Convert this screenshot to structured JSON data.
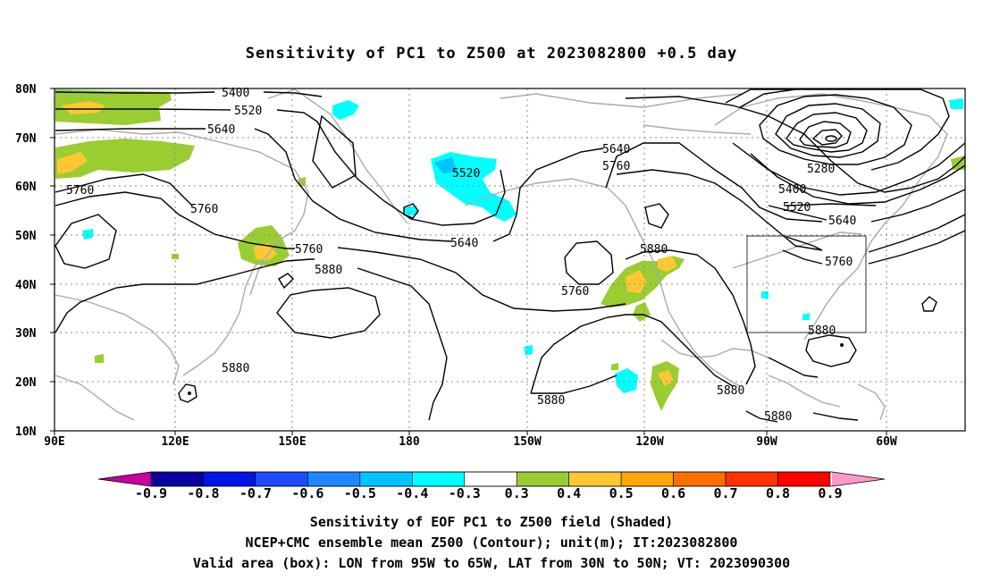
{
  "title": "Sensitivity of PC1 to Z500 at 2023082800 +0.5 day",
  "captions": [
    "Sensitivity of EOF PC1 to Z500 field (Shaded)",
    "NCEP+CMC ensemble mean Z500 (Contour); unit(m); IT:2023082800",
    "Valid area (box): LON from 95W to 65W, LAT from 30N to 50N; VT: 2023090300"
  ],
  "map": {
    "lon_range": [
      "90E",
      "50W"
    ],
    "lat_range": [
      "10N",
      "80N"
    ],
    "lat_ticks": [
      "80N",
      "70N",
      "60N",
      "50N",
      "40N",
      "30N",
      "20N",
      "10N"
    ],
    "lon_ticks": [
      "90E",
      "120E",
      "150E",
      "180",
      "150W",
      "120W",
      "90W",
      "60W"
    ],
    "grid": "dotted",
    "valid_box": {
      "lon_from": "95W",
      "lon_to": "65W",
      "lat_from": "30N",
      "lat_to": "50N"
    }
  },
  "contour_labels": {
    "c5400a": "5400",
    "c5520a": "5520",
    "c5640a": "5640",
    "c5760a": "5760",
    "c5760b": "5760",
    "c5520b": "5520",
    "c5640b": "5640",
    "c5760c": "5760",
    "c5640c": "5640",
    "c5760d": "5760",
    "c5880a": "5880",
    "c5760e": "5760",
    "c5880b": "5880",
    "c5280": "5280",
    "c5400b": "5400",
    "c5520c": "5520",
    "c5640d": "5640",
    "c5760f": "5760",
    "c5880c": "5880",
    "c5880d": "5880",
    "c5880e": "5880",
    "c5880f": "5880"
  },
  "colorbar": {
    "labels": [
      "-0.9",
      "-0.8",
      "-0.7",
      "-0.6",
      "-0.5",
      "-0.4",
      "-0.3",
      "0.3",
      "0.4",
      "0.5",
      "0.6",
      "0.7",
      "0.8",
      "0.9"
    ],
    "colors": [
      "#0a00a0",
      "#0014e6",
      "#1e4bff",
      "#1e87ff",
      "#00c3ff",
      "#00ffff",
      "#ffffff",
      "#9acd32",
      "#ffc832",
      "#ffa50a",
      "#ff6e00",
      "#ff3200",
      "#ff0000"
    ],
    "low_arrow_color": "#c800a0",
    "high_arrow_color": "#ff99cc"
  }
}
